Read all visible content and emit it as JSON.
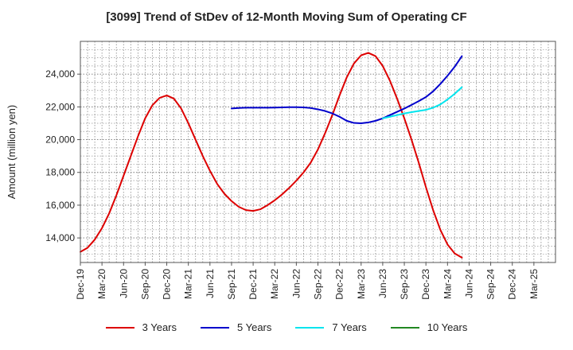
{
  "chart_data": {
    "type": "line",
    "title": "[3099]  Trend of StDev of 12-Month Moving Sum of Operating CF",
    "ylabel": "Amount (million yen)",
    "xlabel": "",
    "ylim": [
      12500,
      26000
    ],
    "yticks": [
      14000,
      16000,
      18000,
      20000,
      22000,
      24000
    ],
    "ytick_labels": [
      "14,000",
      "16,000",
      "18,000",
      "20,000",
      "22,000",
      "24,000"
    ],
    "x_tick_labels": [
      "Dec-19",
      "Mar-20",
      "Jun-20",
      "Sep-20",
      "Dec-20",
      "Mar-21",
      "Jun-21",
      "Sep-21",
      "Dec-21",
      "Mar-22",
      "Jun-22",
      "Sep-22",
      "Dec-22",
      "Mar-23",
      "Jun-23",
      "Sep-23",
      "Dec-23",
      "Mar-24",
      "Jun-24",
      "Sep-24",
      "Dec-24",
      "Mar-25"
    ],
    "x_range_months": [
      0,
      66
    ],
    "grid": true,
    "legend_position": "bottom",
    "series": [
      {
        "name": "3 Years",
        "color": "#dd0000",
        "points": [
          [
            0,
            13150
          ],
          [
            1,
            13400
          ],
          [
            2,
            13900
          ],
          [
            3,
            14600
          ],
          [
            4,
            15500
          ],
          [
            5,
            16600
          ],
          [
            6,
            17800
          ],
          [
            7,
            19000
          ],
          [
            8,
            20200
          ],
          [
            9,
            21300
          ],
          [
            10,
            22100
          ],
          [
            11,
            22550
          ],
          [
            12,
            22700
          ],
          [
            13,
            22500
          ],
          [
            14,
            21900
          ],
          [
            15,
            21000
          ],
          [
            16,
            20000
          ],
          [
            17,
            19000
          ],
          [
            18,
            18100
          ],
          [
            19,
            17300
          ],
          [
            20,
            16700
          ],
          [
            21,
            16250
          ],
          [
            22,
            15900
          ],
          [
            23,
            15700
          ],
          [
            24,
            15650
          ],
          [
            25,
            15750
          ],
          [
            26,
            16000
          ],
          [
            27,
            16300
          ],
          [
            28,
            16650
          ],
          [
            29,
            17050
          ],
          [
            30,
            17500
          ],
          [
            31,
            18000
          ],
          [
            32,
            18600
          ],
          [
            33,
            19400
          ],
          [
            34,
            20400
          ],
          [
            35,
            21500
          ],
          [
            36,
            22700
          ],
          [
            37,
            23800
          ],
          [
            38,
            24650
          ],
          [
            39,
            25150
          ],
          [
            40,
            25300
          ],
          [
            41,
            25100
          ],
          [
            42,
            24500
          ],
          [
            43,
            23600
          ],
          [
            44,
            22500
          ],
          [
            45,
            21300
          ],
          [
            46,
            20000
          ],
          [
            47,
            18600
          ],
          [
            48,
            17100
          ],
          [
            49,
            15700
          ],
          [
            50,
            14500
          ],
          [
            51,
            13600
          ],
          [
            52,
            13050
          ],
          [
            53,
            12800
          ]
        ]
      },
      {
        "name": "5 Years",
        "color": "#0000cc",
        "points": [
          [
            21,
            21900
          ],
          [
            22,
            21930
          ],
          [
            23,
            21950
          ],
          [
            24,
            21950
          ],
          [
            25,
            21950
          ],
          [
            26,
            21950
          ],
          [
            27,
            21960
          ],
          [
            28,
            21970
          ],
          [
            29,
            21980
          ],
          [
            30,
            21980
          ],
          [
            31,
            21970
          ],
          [
            32,
            21930
          ],
          [
            33,
            21850
          ],
          [
            34,
            21750
          ],
          [
            35,
            21600
          ],
          [
            36,
            21400
          ],
          [
            37,
            21150
          ],
          [
            38,
            21020
          ],
          [
            39,
            21000
          ],
          [
            40,
            21050
          ],
          [
            41,
            21150
          ],
          [
            42,
            21300
          ],
          [
            43,
            21500
          ],
          [
            44,
            21700
          ],
          [
            45,
            21900
          ],
          [
            46,
            22120
          ],
          [
            47,
            22350
          ],
          [
            48,
            22600
          ],
          [
            49,
            22950
          ],
          [
            50,
            23400
          ],
          [
            51,
            23900
          ],
          [
            52,
            24450
          ],
          [
            53,
            25100
          ]
        ]
      },
      {
        "name": "7 Years",
        "color": "#00e5ee",
        "points": [
          [
            42,
            21300
          ],
          [
            43,
            21400
          ],
          [
            44,
            21500
          ],
          [
            45,
            21600
          ],
          [
            46,
            21680
          ],
          [
            47,
            21750
          ],
          [
            48,
            21820
          ],
          [
            49,
            21950
          ],
          [
            50,
            22150
          ],
          [
            51,
            22450
          ],
          [
            52,
            22800
          ],
          [
            53,
            23200
          ]
        ]
      },
      {
        "name": "10 Years",
        "color": "#228822",
        "points": []
      }
    ]
  }
}
